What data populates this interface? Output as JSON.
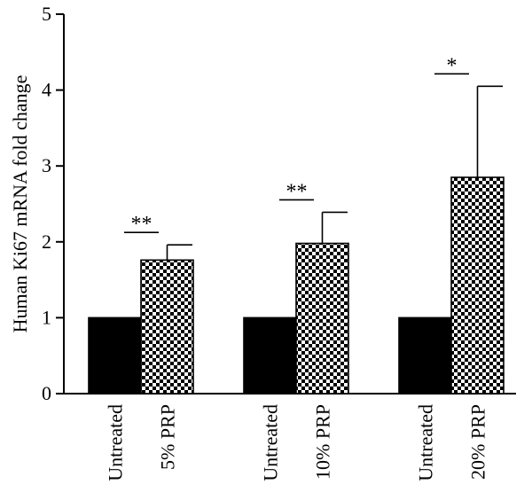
{
  "chart_data": {
    "type": "bar",
    "title": "",
    "xlabel": "",
    "ylabel": "Human Ki67 mRNA fold change",
    "ylim": [
      0,
      5
    ],
    "yticks": [
      0,
      1,
      2,
      3,
      4,
      5
    ],
    "grid": false,
    "groups": [
      {
        "bars": [
          {
            "label": "Untreated",
            "value": 1.0,
            "error": null,
            "pattern": "solid"
          },
          {
            "label": "5% PRP",
            "value": 1.76,
            "error": 0.2,
            "pattern": "checker"
          }
        ],
        "significance": "**"
      },
      {
        "bars": [
          {
            "label": "Untreated",
            "value": 1.0,
            "error": null,
            "pattern": "solid"
          },
          {
            "label": "10% PRP",
            "value": 1.98,
            "error": 0.41,
            "pattern": "checker"
          }
        ],
        "significance": "**"
      },
      {
        "bars": [
          {
            "label": "Untreated",
            "value": 1.0,
            "error": null,
            "pattern": "solid"
          },
          {
            "label": "20% PRP",
            "value": 2.85,
            "error": 1.2,
            "pattern": "checker"
          }
        ],
        "significance": "*"
      }
    ],
    "colors": {
      "solid": "#000000",
      "checker_dark": "#000000",
      "checker_light": "#ffffff"
    }
  }
}
